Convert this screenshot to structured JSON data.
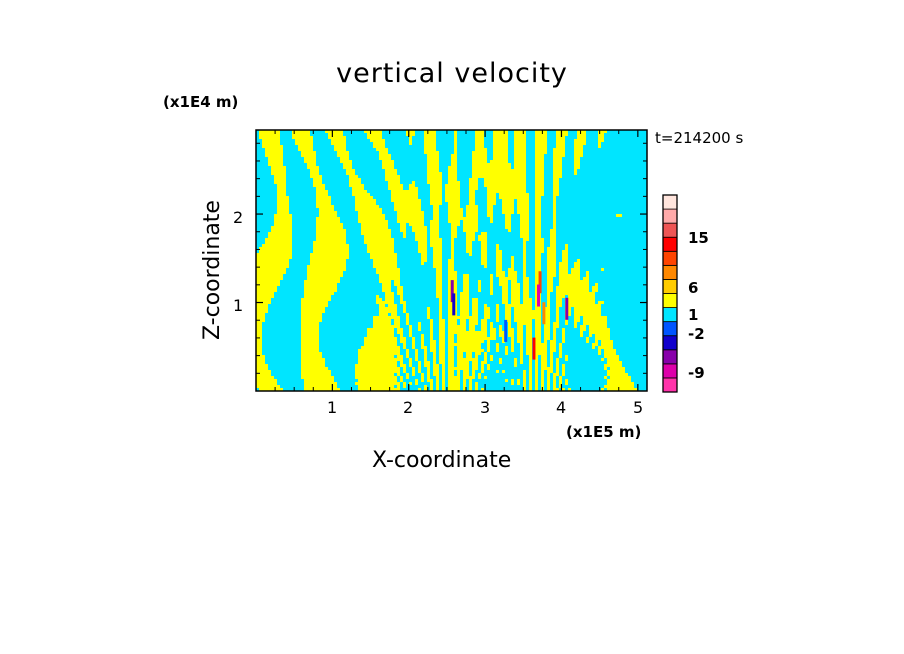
{
  "chart_data": {
    "type": "heatmap",
    "title": "vertical velocity",
    "xlabel": "X-coordinate",
    "ylabel": "Z-coordinate",
    "x_unit": "(x1E5 m)",
    "y_unit": "(x1E4 m)",
    "timestamp": "t=214200 s",
    "xlim": [
      0,
      5.12
    ],
    "ylim": [
      0,
      2.95
    ],
    "x_ticks": [
      "1",
      "2",
      "3",
      "4",
      "5"
    ],
    "y_ticks": [
      "1",
      "2"
    ],
    "x_tick_values": [
      1,
      2,
      3,
      4,
      5
    ],
    "y_tick_values": [
      1,
      2
    ],
    "colorbar": {
      "labels": [
        "15",
        "6",
        "1",
        "-2",
        "-9"
      ],
      "levels": [
        {
          "color": "#ff33aa"
        },
        {
          "color": "#dd00aa"
        },
        {
          "color": "#8800aa"
        },
        {
          "color": "#1100cc"
        },
        {
          "color": "#0055ff"
        },
        {
          "color": "#00e5ff"
        },
        {
          "color": "#ffff00"
        },
        {
          "color": "#ffcc00"
        },
        {
          "color": "#ff8800"
        },
        {
          "color": "#ff4400"
        },
        {
          "color": "#ff0000"
        },
        {
          "color": "#ee5555"
        },
        {
          "color": "#ffaaaa"
        },
        {
          "color": "#ffe5dd"
        }
      ]
    },
    "field_colors": {
      "positive": "#ffff00",
      "negative": "#00e5ff"
    },
    "grid": false
  }
}
